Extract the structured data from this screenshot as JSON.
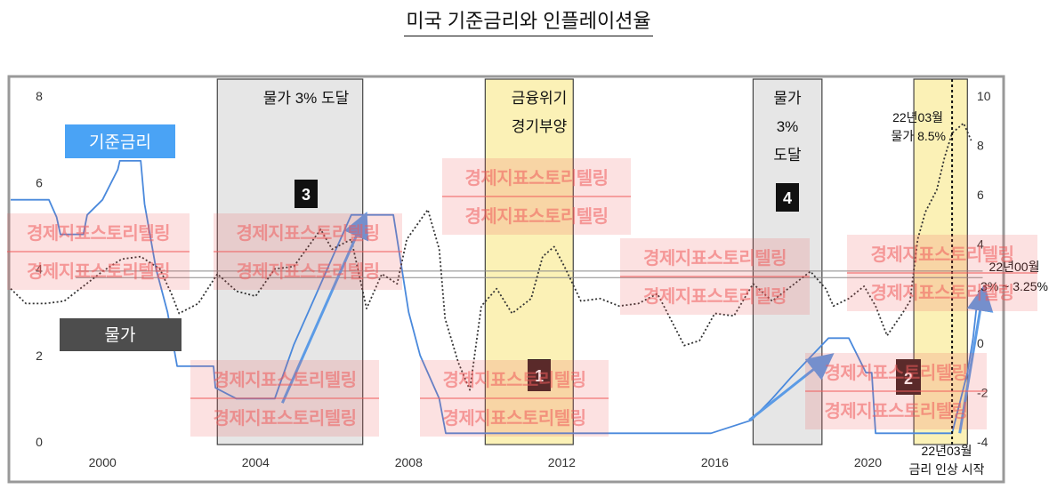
{
  "page": {
    "title": "미국 기준금리와 인플레이션율"
  },
  "legend": {
    "rate_label": "기준금리",
    "cpi_label": "물가"
  },
  "colors": {
    "rate": "#4a89dc",
    "cpi": "#333333",
    "gray_band": "#e6e6e6",
    "yellow_band": "#fbf1b6",
    "arrow": "#5b9be6",
    "watermark": "#ef5b5b"
  },
  "annotations": {
    "band1_label": "물가 3% 도달",
    "band2_line1": "금융위기",
    "band2_line2": "경기부양",
    "band3_line1": "물가",
    "band3_line2": "3%",
    "band3_line3": "도달",
    "callout_cpi_line1": "22년03월",
    "callout_cpi_line2": "물가 8.5%",
    "callout_rate_line1": "22년00월",
    "callout_rate_line2": "3% ~ 3.25%",
    "hike_line1": "22년03월",
    "hike_line2": "금리 인상 시작",
    "badge1": "1",
    "badge2": "2",
    "badge3": "3",
    "badge4": "4"
  },
  "watermark": {
    "text": "경제지표스토리텔링"
  },
  "chart_data": {
    "type": "line",
    "title": "미국 기준금리와 인플레이션율",
    "xlim": [
      1997.6,
      2023.5
    ],
    "x_ticks": [
      "2000",
      "2004",
      "2008",
      "2012",
      "2016",
      "2020"
    ],
    "y_left": {
      "ylim": [
        0,
        8
      ],
      "ticks": [
        "0",
        "2",
        "4",
        "6",
        "8"
      ]
    },
    "y_right": {
      "ylim": [
        -4,
        10
      ],
      "ticks": [
        "-4",
        "-2",
        "0",
        "2",
        "4",
        "6",
        "8",
        "10"
      ]
    },
    "series": [
      {
        "name": "기준금리",
        "axis": "left",
        "style": "solid",
        "points": [
          [
            1997.6,
            5.6
          ],
          [
            1998.6,
            5.6
          ],
          [
            1998.8,
            5.2
          ],
          [
            1998.9,
            4.8
          ],
          [
            1999.5,
            4.8
          ],
          [
            1999.6,
            5.25
          ],
          [
            2000.0,
            5.6
          ],
          [
            2000.4,
            6.3
          ],
          [
            2000.45,
            6.5
          ],
          [
            2001.0,
            6.5
          ],
          [
            2001.1,
            5.5
          ],
          [
            2001.4,
            4.0
          ],
          [
            2001.7,
            3.0
          ],
          [
            2001.95,
            1.75
          ],
          [
            2002.9,
            1.75
          ],
          [
            2002.95,
            1.25
          ],
          [
            2003.5,
            1.0
          ],
          [
            2004.5,
            1.0
          ],
          [
            2005.0,
            2.25
          ],
          [
            2005.5,
            3.25
          ],
          [
            2006.0,
            4.25
          ],
          [
            2006.5,
            5.25
          ],
          [
            2007.6,
            5.25
          ],
          [
            2008.0,
            3.0
          ],
          [
            2008.3,
            2.0
          ],
          [
            2008.8,
            1.0
          ],
          [
            2008.97,
            0.2
          ],
          [
            2015.9,
            0.2
          ],
          [
            2016.95,
            0.5
          ],
          [
            2017.5,
            1.0
          ],
          [
            2018.0,
            1.5
          ],
          [
            2018.97,
            2.4
          ],
          [
            2019.5,
            2.4
          ],
          [
            2019.95,
            1.6
          ],
          [
            2020.1,
            1.6
          ],
          [
            2020.2,
            0.2
          ],
          [
            2022.2,
            0.2
          ],
          [
            2022.4,
            0.9
          ],
          [
            2022.6,
            1.6
          ],
          [
            2022.75,
            2.4
          ],
          [
            2022.85,
            3.2
          ]
        ]
      },
      {
        "name": "물가",
        "axis": "right",
        "style": "dotted",
        "points": [
          [
            1997.6,
            2.2
          ],
          [
            1998.0,
            1.6
          ],
          [
            1998.5,
            1.6
          ],
          [
            1999.0,
            1.7
          ],
          [
            1999.5,
            2.3
          ],
          [
            2000.0,
            2.9
          ],
          [
            2000.5,
            3.4
          ],
          [
            2001.0,
            3.5
          ],
          [
            2001.5,
            3.0
          ],
          [
            2001.8,
            2.0
          ],
          [
            2002.0,
            1.2
          ],
          [
            2002.5,
            1.6
          ],
          [
            2003.0,
            2.8
          ],
          [
            2003.5,
            2.1
          ],
          [
            2004.0,
            1.9
          ],
          [
            2004.5,
            3.0
          ],
          [
            2005.0,
            3.1
          ],
          [
            2005.7,
            4.6
          ],
          [
            2006.0,
            3.8
          ],
          [
            2006.5,
            4.2
          ],
          [
            2006.9,
            1.4
          ],
          [
            2007.3,
            2.8
          ],
          [
            2007.7,
            2.4
          ],
          [
            2007.95,
            4.2
          ],
          [
            2008.5,
            5.4
          ],
          [
            2008.8,
            3.8
          ],
          [
            2008.95,
            1.0
          ],
          [
            2009.3,
            -0.8
          ],
          [
            2009.6,
            -1.9
          ],
          [
            2009.9,
            1.5
          ],
          [
            2010.3,
            2.2
          ],
          [
            2010.7,
            1.2
          ],
          [
            2011.2,
            1.8
          ],
          [
            2011.5,
            3.5
          ],
          [
            2011.8,
            3.9
          ],
          [
            2012.1,
            3.0
          ],
          [
            2012.5,
            1.7
          ],
          [
            2013.0,
            1.8
          ],
          [
            2013.5,
            1.5
          ],
          [
            2014.0,
            1.6
          ],
          [
            2014.5,
            2.0
          ],
          [
            2014.9,
            0.8
          ],
          [
            2015.2,
            -0.1
          ],
          [
            2015.6,
            0.1
          ],
          [
            2016.0,
            1.2
          ],
          [
            2016.5,
            1.1
          ],
          [
            2017.0,
            2.4
          ],
          [
            2017.5,
            1.7
          ],
          [
            2018.0,
            2.3
          ],
          [
            2018.5,
            2.9
          ],
          [
            2018.9,
            2.2
          ],
          [
            2019.1,
            1.5
          ],
          [
            2019.5,
            1.8
          ],
          [
            2019.9,
            2.3
          ],
          [
            2020.2,
            1.5
          ],
          [
            2020.5,
            0.3
          ],
          [
            2020.9,
            1.2
          ],
          [
            2021.1,
            1.7
          ],
          [
            2021.3,
            4.2
          ],
          [
            2021.5,
            5.3
          ],
          [
            2021.8,
            6.2
          ],
          [
            2022.0,
            7.5
          ],
          [
            2022.2,
            8.5
          ],
          [
            2022.5,
            8.9
          ],
          [
            2022.7,
            8.2
          ]
        ]
      }
    ],
    "reference_lines_left": [
      3.8,
      3.95
    ],
    "shaded_ranges": [
      {
        "from": 2003.0,
        "to": 2006.8,
        "color": "gray"
      },
      {
        "from": 2010.0,
        "to": 2012.3,
        "color": "yellow"
      },
      {
        "from": 2017.0,
        "to": 2018.8,
        "color": "gray"
      },
      {
        "from": 2021.2,
        "to": 2022.6,
        "color": "yellow"
      }
    ],
    "vertical_marker": 2022.2,
    "arrows": [
      {
        "from": [
          2004.7,
          0.9
        ],
        "to": [
          2006.8,
          5.1
        ]
      },
      {
        "from": [
          2016.9,
          0.5
        ],
        "to": [
          2018.9,
          1.9
        ]
      },
      {
        "from": [
          2022.4,
          0.2
        ],
        "to": [
          2023.0,
          3.4
        ]
      }
    ]
  }
}
